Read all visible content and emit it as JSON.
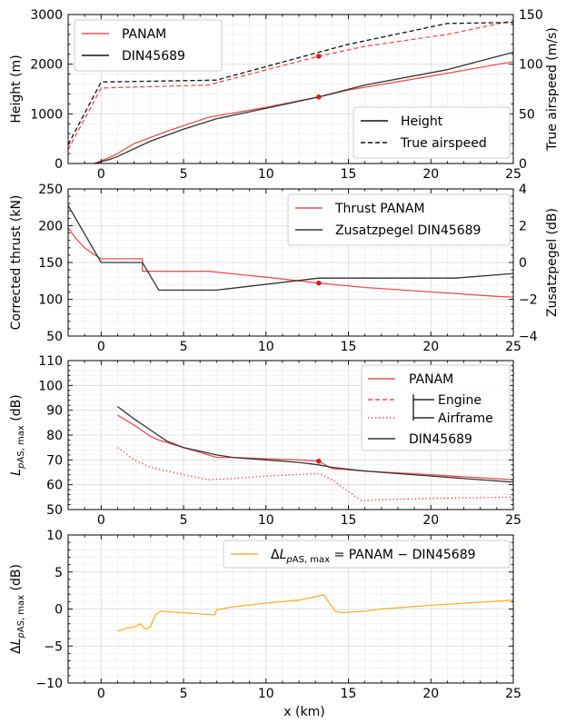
{
  "figure": {
    "xlabel": "x (km)"
  },
  "chart_data": [
    {
      "type": "line",
      "xlim": [
        -2,
        25
      ],
      "xticks": [
        0,
        5,
        10,
        15,
        20,
        25
      ],
      "ylabel": "Height (m)",
      "ylim": [
        0,
        3000
      ],
      "yticks": [
        0,
        1000,
        2000,
        3000
      ],
      "ylabel_right": "True airspeed (m/s)",
      "ylim_right": [
        0,
        150
      ],
      "yticks_right": [
        0,
        50,
        100,
        150
      ],
      "grid": true,
      "legends": [
        {
          "position": "upper-left",
          "entries": [
            {
              "label": "PANAM",
              "color": "#f05050",
              "dash": "solid"
            },
            {
              "label": "DIN45689",
              "color": "#111111",
              "dash": "solid"
            }
          ]
        },
        {
          "position": "lower-right",
          "entries": [
            {
              "label": "Height",
              "color": "#111111",
              "dash": "solid"
            },
            {
              "label": "True airspeed",
              "color": "#111111",
              "dash": "dashed"
            }
          ]
        }
      ],
      "series": [
        {
          "axis": "left",
          "color": "#f05050",
          "dash": "solid",
          "x": [
            -0.4,
            0.5,
            1,
            2,
            4,
            6.5,
            10,
            13.2,
            15,
            20,
            25
          ],
          "y": [
            0,
            120,
            200,
            400,
            650,
            930,
            1130,
            1340,
            1480,
            1760,
            2050
          ]
        },
        {
          "axis": "left",
          "color": "#333333",
          "dash": "solid",
          "x": [
            -0.4,
            0.5,
            1,
            3,
            5,
            7,
            10,
            13.2,
            16,
            21,
            25
          ],
          "y": [
            0,
            80,
            140,
            450,
            690,
            900,
            1110,
            1340,
            1580,
            1890,
            2240
          ]
        },
        {
          "axis": "right",
          "color": "#f05050",
          "dash": "dashed",
          "x": [
            -2,
            0,
            6.5,
            13.2,
            16,
            21,
            25
          ],
          "y": [
            14,
            76,
            79,
            108,
            118,
            130,
            144
          ]
        },
        {
          "axis": "right",
          "color": "#111111",
          "dash": "dashed",
          "x": [
            -2,
            0,
            7,
            13.2,
            15,
            21,
            25
          ],
          "y": [
            19,
            82,
            84,
            112,
            120,
            141,
            142
          ]
        }
      ],
      "markers": [
        {
          "axis": "left",
          "x": 13.2,
          "y": 1340,
          "color": "#d02020"
        },
        {
          "axis": "right",
          "x": 13.2,
          "y": 108,
          "color": "#d02020"
        }
      ]
    },
    {
      "type": "line",
      "xlim": [
        -2,
        25
      ],
      "xticks": [
        0,
        5,
        10,
        15,
        20,
        25
      ],
      "ylabel": "Corrected thrust (kN)",
      "ylim": [
        50,
        250
      ],
      "yticks": [
        50,
        100,
        150,
        200,
        250
      ],
      "ylabel_right": "Zusatzpegel (dB)",
      "ylim_right": [
        -4,
        4
      ],
      "yticks_right": [
        -4,
        -2,
        0,
        2,
        4
      ],
      "grid": true,
      "legends": [
        {
          "position": "upper-right",
          "entries": [
            {
              "label": "Thrust PANAM",
              "color": "#f05050",
              "dash": "solid"
            },
            {
              "label": "Zusatzpegel DIN45689",
              "color": "#333333",
              "dash": "solid"
            }
          ]
        }
      ],
      "series": [
        {
          "axis": "left",
          "color": "#f05050",
          "dash": "solid",
          "x": [
            -2,
            -1.5,
            -1,
            -0.5,
            0,
            2.5,
            2.5,
            6.5,
            10,
            13.2,
            16,
            20,
            24,
            25
          ],
          "y": [
            197,
            182,
            170,
            162,
            155,
            155,
            138,
            138,
            130,
            122,
            116,
            110,
            104,
            103
          ]
        },
        {
          "axis": "right",
          "color": "#333333",
          "dash": "solid",
          "x": [
            -2,
            0,
            2.5,
            3.5,
            7,
            13.2,
            21.5,
            25
          ],
          "y": [
            3.1,
            0,
            0,
            -1.5,
            -1.5,
            -0.85,
            -0.85,
            -0.6
          ]
        }
      ],
      "markers": [
        {
          "axis": "left",
          "x": 13.2,
          "y": 122,
          "color": "#d02020"
        }
      ]
    },
    {
      "type": "line",
      "xlim": [
        -2,
        25
      ],
      "xticks": [
        0,
        5,
        10,
        15,
        20,
        25
      ],
      "ylabel": "L_pAS,max (dB)",
      "ylim": [
        50,
        110
      ],
      "yticks": [
        50,
        60,
        70,
        80,
        90,
        100,
        110
      ],
      "grid": true,
      "legends": [
        {
          "position": "upper-right",
          "entries": [
            {
              "label": "PANAM",
              "color": "#f05050",
              "dash": "solid"
            },
            {
              "label": "Engine",
              "color": "#f05050",
              "dash": "dashed"
            },
            {
              "label": "Airframe",
              "color": "#f05050",
              "dash": "dotted"
            },
            {
              "label": "DIN45689",
              "color": "#333333",
              "dash": "solid"
            }
          ]
        }
      ],
      "series": [
        {
          "axis": "left",
          "color": "#f05050",
          "dash": "solid",
          "x": [
            1,
            2,
            3,
            3.5,
            4,
            5,
            6,
            7,
            8,
            10,
            12,
            13.2,
            14,
            16,
            20,
            25
          ],
          "y": [
            88,
            84,
            79.5,
            78,
            77,
            75,
            73,
            71,
            71,
            70.5,
            70,
            69.5,
            66.5,
            65.5,
            64,
            62
          ]
        },
        {
          "axis": "left",
          "color": "#f05050",
          "dash": "dotted",
          "x": [
            1,
            2,
            3,
            5,
            6.5,
            8,
            10,
            13.2,
            14,
            15.8,
            17,
            20,
            25
          ],
          "y": [
            75,
            70,
            67,
            64,
            62,
            62.5,
            63.5,
            64.5,
            62,
            53.5,
            54,
            54.5,
            55
          ]
        },
        {
          "axis": "left",
          "color": "#333333",
          "dash": "solid",
          "x": [
            1,
            2,
            3,
            4,
            5,
            6,
            7,
            8,
            10,
            12,
            13.2,
            14,
            16,
            20,
            25
          ],
          "y": [
            91.5,
            86.5,
            82,
            77.5,
            75,
            73.5,
            72,
            71,
            70,
            69,
            68,
            67,
            65.5,
            63.5,
            61
          ]
        }
      ],
      "markers": [
        {
          "axis": "left",
          "x": 13.2,
          "y": 69.5,
          "color": "#d02020"
        }
      ]
    },
    {
      "type": "line",
      "xlim": [
        -2,
        25
      ],
      "xticks": [
        0,
        5,
        10,
        15,
        20,
        25
      ],
      "ylabel": "ΔL_pAS,max (dB)",
      "ylim": [
        -10,
        10
      ],
      "yticks": [
        -10,
        -5,
        0,
        5,
        10
      ],
      "grid": true,
      "legends": [
        {
          "position": "upper-right",
          "entries": [
            {
              "label": "ΔL_pAS,max = PANAM − DIN45689",
              "color": "#ffaf2a",
              "dash": "solid"
            }
          ]
        }
      ],
      "series": [
        {
          "axis": "left",
          "color": "#ffaf2a",
          "dash": "solid",
          "x": [
            1,
            1.5,
            2,
            2.4,
            2.6,
            2.8,
            3,
            3.3,
            3.6,
            5,
            6.9,
            7,
            8,
            10,
            12,
            13.5,
            14.2,
            14.6,
            16,
            17,
            20,
            25
          ],
          "y": [
            -3,
            -2.6,
            -2.4,
            -2.0,
            -2.6,
            -2.7,
            -2.3,
            -0.8,
            -0.3,
            -0.5,
            -0.8,
            -0.1,
            0.3,
            0.8,
            1.2,
            1.9,
            -0.3,
            -0.5,
            -0.3,
            0,
            0.5,
            1.2
          ]
        }
      ],
      "markers": []
    }
  ]
}
